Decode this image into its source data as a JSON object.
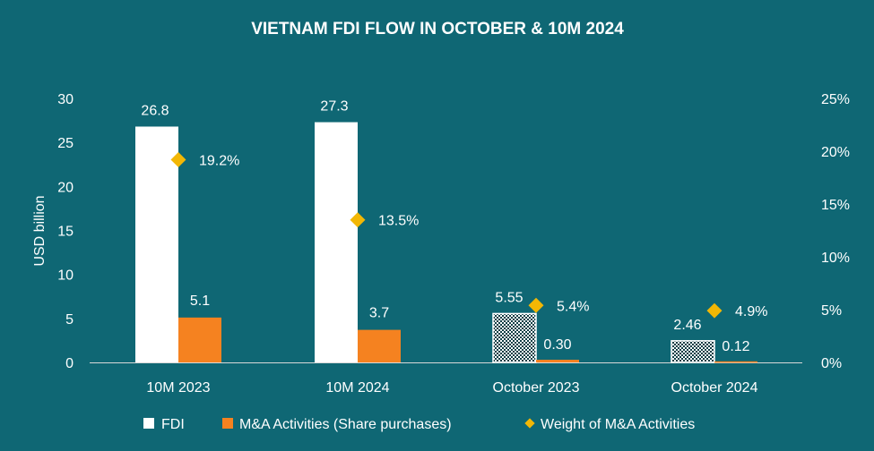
{
  "colors": {
    "background": "#0f6774",
    "fdi": "#ffffff",
    "ma": "#f58220",
    "weight": "#f2b705",
    "axis": "#e0e0e0"
  },
  "chart_data": {
    "type": "bar",
    "title": "VIETNAM FDI FLOW IN OCTOBER & 10M 2024",
    "ylabel": "USD billion",
    "ylim": [
      0,
      30
    ],
    "yticks": [
      "0",
      "5",
      "10",
      "15",
      "20",
      "25",
      "30"
    ],
    "y2lim": [
      0,
      25
    ],
    "y2ticks": [
      "0%",
      "5%",
      "10%",
      "15%",
      "20%",
      "25%"
    ],
    "categories": [
      "10M 2023",
      "10M 2024",
      "October 2023",
      "October 2024"
    ],
    "series": [
      {
        "name": "FDI",
        "kind": "bar",
        "values": [
          26.8,
          27.3,
          5.55,
          2.46
        ],
        "labels": [
          "26.8",
          "27.3",
          "5.55",
          "2.46"
        ],
        "pattern": [
          false,
          false,
          true,
          true
        ]
      },
      {
        "name": "M&A Activities (Share purchases)",
        "kind": "bar",
        "values": [
          5.1,
          3.7,
          0.3,
          0.12
        ],
        "labels": [
          "5.1",
          "3.7",
          "0.30",
          "0.12"
        ]
      },
      {
        "name": "Weight of M&A Activities",
        "kind": "marker",
        "axis": "secondary",
        "values": [
          19.2,
          13.5,
          5.4,
          4.9
        ],
        "labels": [
          "19.2%",
          "13.5%",
          "5.4%",
          "4.9%"
        ]
      }
    ],
    "legend_position": "bottom",
    "grid": false
  }
}
